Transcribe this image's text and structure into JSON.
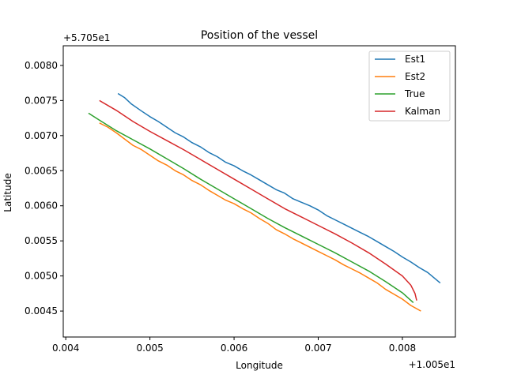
{
  "chart_data": {
    "type": "line",
    "title": "Position of the vessel",
    "xlabel": "Longitude",
    "ylabel": "Latitude",
    "x_offset_label": "+1.005e1",
    "y_offset_label": "+5.705e1",
    "xlim": [
      0.00397,
      0.00863
    ],
    "ylim": [
      0.00413,
      0.00828
    ],
    "x_ticks": [
      0.004,
      0.005,
      0.006,
      0.007,
      0.008
    ],
    "x_tick_labels": [
      "0.004",
      "0.005",
      "0.006",
      "0.007",
      "0.008"
    ],
    "y_ticks": [
      0.0045,
      0.005,
      0.0055,
      0.006,
      0.0065,
      0.007,
      0.0075,
      0.008
    ],
    "y_tick_labels": [
      "0.0045",
      "0.0050",
      "0.0055",
      "0.0060",
      "0.0065",
      "0.0070",
      "0.0075",
      "0.0080"
    ],
    "legend_position": "top-right",
    "grid": false,
    "series": [
      {
        "name": "Est1",
        "color": "#1f77b4",
        "points": [
          [
            0.00462,
            0.0076
          ],
          [
            0.0047,
            0.00754
          ],
          [
            0.00478,
            0.00745
          ],
          [
            0.0049,
            0.00735
          ],
          [
            0.005,
            0.00727
          ],
          [
            0.0051,
            0.0072
          ],
          [
            0.0052,
            0.00712
          ],
          [
            0.0053,
            0.00704
          ],
          [
            0.0054,
            0.00698
          ],
          [
            0.0055,
            0.0069
          ],
          [
            0.0056,
            0.00684
          ],
          [
            0.0057,
            0.00676
          ],
          [
            0.0058,
            0.0067
          ],
          [
            0.0059,
            0.00662
          ],
          [
            0.006,
            0.00657
          ],
          [
            0.0061,
            0.0065
          ],
          [
            0.0062,
            0.00644
          ],
          [
            0.0063,
            0.00637
          ],
          [
            0.0064,
            0.0063
          ],
          [
            0.0065,
            0.00623
          ],
          [
            0.0066,
            0.00618
          ],
          [
            0.0067,
            0.0061
          ],
          [
            0.0068,
            0.00605
          ],
          [
            0.0069,
            0.006
          ],
          [
            0.007,
            0.00594
          ],
          [
            0.0071,
            0.00586
          ],
          [
            0.0072,
            0.0058
          ],
          [
            0.0073,
            0.00574
          ],
          [
            0.0074,
            0.00568
          ],
          [
            0.0075,
            0.00562
          ],
          [
            0.0076,
            0.00556
          ],
          [
            0.0077,
            0.00549
          ],
          [
            0.0078,
            0.00542
          ],
          [
            0.0079,
            0.00535
          ],
          [
            0.008,
            0.00527
          ],
          [
            0.0081,
            0.0052
          ],
          [
            0.0082,
            0.00512
          ],
          [
            0.0083,
            0.00505
          ],
          [
            0.00845,
            0.0049
          ]
        ]
      },
      {
        "name": "Est2",
        "color": "#ff7f0e",
        "points": [
          [
            0.0044,
            0.00718
          ],
          [
            0.0045,
            0.00712
          ],
          [
            0.0046,
            0.00704
          ],
          [
            0.0047,
            0.00695
          ],
          [
            0.0048,
            0.00686
          ],
          [
            0.0049,
            0.0068
          ],
          [
            0.005,
            0.00672
          ],
          [
            0.0051,
            0.00664
          ],
          [
            0.0052,
            0.00658
          ],
          [
            0.0053,
            0.0065
          ],
          [
            0.0054,
            0.00644
          ],
          [
            0.0055,
            0.00636
          ],
          [
            0.0056,
            0.0063
          ],
          [
            0.0057,
            0.00622
          ],
          [
            0.0058,
            0.00615
          ],
          [
            0.0059,
            0.00608
          ],
          [
            0.006,
            0.00603
          ],
          [
            0.0061,
            0.00596
          ],
          [
            0.0062,
            0.0059
          ],
          [
            0.0063,
            0.00582
          ],
          [
            0.0064,
            0.00575
          ],
          [
            0.0065,
            0.00566
          ],
          [
            0.0066,
            0.0056
          ],
          [
            0.0067,
            0.00553
          ],
          [
            0.0068,
            0.00547
          ],
          [
            0.0069,
            0.00541
          ],
          [
            0.007,
            0.00535
          ],
          [
            0.0071,
            0.00529
          ],
          [
            0.0072,
            0.00523
          ],
          [
            0.0073,
            0.00516
          ],
          [
            0.0074,
            0.0051
          ],
          [
            0.0075,
            0.00504
          ],
          [
            0.0076,
            0.00497
          ],
          [
            0.0077,
            0.0049
          ],
          [
            0.0078,
            0.00481
          ],
          [
            0.0079,
            0.00474
          ],
          [
            0.008,
            0.00467
          ],
          [
            0.0081,
            0.00458
          ],
          [
            0.00822,
            0.0045
          ]
        ]
      },
      {
        "name": "True",
        "color": "#2ca02c",
        "points": [
          [
            0.00427,
            0.00732
          ],
          [
            0.0044,
            0.00722
          ],
          [
            0.0046,
            0.00707
          ],
          [
            0.0048,
            0.00694
          ],
          [
            0.005,
            0.00681
          ],
          [
            0.0052,
            0.00667
          ],
          [
            0.0054,
            0.00653
          ],
          [
            0.0056,
            0.00638
          ],
          [
            0.0058,
            0.00624
          ],
          [
            0.006,
            0.0061
          ],
          [
            0.0062,
            0.00596
          ],
          [
            0.0064,
            0.00582
          ],
          [
            0.0066,
            0.00569
          ],
          [
            0.0068,
            0.00557
          ],
          [
            0.007,
            0.00545
          ],
          [
            0.0072,
            0.00533
          ],
          [
            0.0074,
            0.0052
          ],
          [
            0.0076,
            0.00507
          ],
          [
            0.0078,
            0.00492
          ],
          [
            0.008,
            0.00476
          ],
          [
            0.00813,
            0.00462
          ]
        ]
      },
      {
        "name": "Kalman",
        "color": "#d62728",
        "points": [
          [
            0.0044,
            0.0075
          ],
          [
            0.0046,
            0.00736
          ],
          [
            0.0048,
            0.0072
          ],
          [
            0.005,
            0.00706
          ],
          [
            0.0052,
            0.00693
          ],
          [
            0.0054,
            0.0068
          ],
          [
            0.0056,
            0.00666
          ],
          [
            0.0058,
            0.00652
          ],
          [
            0.006,
            0.00638
          ],
          [
            0.0062,
            0.00624
          ],
          [
            0.0064,
            0.0061
          ],
          [
            0.0066,
            0.00596
          ],
          [
            0.0068,
            0.00584
          ],
          [
            0.007,
            0.00572
          ],
          [
            0.0072,
            0.0056
          ],
          [
            0.0074,
            0.00547
          ],
          [
            0.0076,
            0.00533
          ],
          [
            0.0078,
            0.00517
          ],
          [
            0.008,
            0.005
          ],
          [
            0.0081,
            0.00487
          ],
          [
            0.00815,
            0.00475
          ],
          [
            0.00817,
            0.00465
          ]
        ]
      }
    ]
  }
}
